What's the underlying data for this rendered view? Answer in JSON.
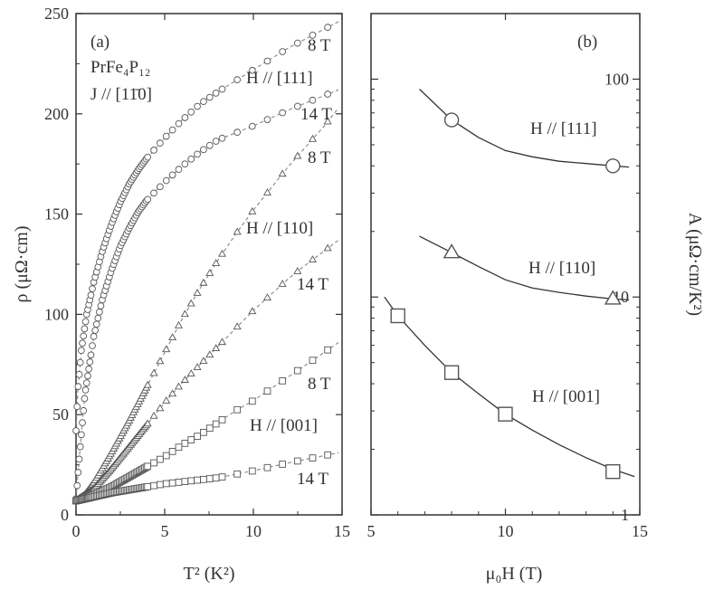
{
  "chart_data": [
    {
      "panel_label": "(a)",
      "type": "scatter",
      "xlabel": "T² (K²)",
      "ylabel": "ρ (μΩ·cm)",
      "xlim": [
        0,
        15
      ],
      "ylim": [
        0,
        250
      ],
      "x_ticks": [
        "0",
        "5",
        "10",
        "15"
      ],
      "y_ticks": [
        "0",
        "50",
        "100",
        "150",
        "200",
        "250"
      ],
      "annotations": [
        "PrFe₄P₁₂",
        "J // [11̄0]",
        "8 T",
        "H // [111]",
        "14 T",
        "8 T",
        "H // [110]",
        "14 T",
        "8 T",
        "H // [001]",
        "14 T"
      ],
      "series": [
        {
          "name": "H // [111] 8 T",
          "marker": "circle",
          "x": [
            0,
            0.1,
            0.3,
            0.6,
            1,
            1.5,
            2,
            2.5,
            3,
            3.5,
            4,
            5,
            6,
            7,
            8,
            10,
            12,
            14.8
          ],
          "y": [
            42,
            62,
            82,
            100,
            116,
            132,
            145,
            156,
            165,
            172,
            178,
            188,
            197,
            205,
            211,
            222,
            233,
            246
          ]
        },
        {
          "name": "H // [111] 14 T",
          "marker": "circle",
          "x": [
            0,
            0.2,
            0.5,
            1,
            1.5,
            2,
            2.5,
            3,
            3.5,
            4,
            5,
            6,
            7,
            8,
            10,
            12,
            14.8
          ],
          "y": [
            8,
            30,
            60,
            89,
            108,
            122,
            134,
            143,
            151,
            157,
            166,
            174,
            181,
            187,
            194,
            202,
            212
          ]
        },
        {
          "name": "H // [110] 8 T",
          "marker": "triangle",
          "x": [
            0,
            0.5,
            1,
            2,
            3,
            4,
            5,
            6,
            7,
            8,
            9,
            10,
            11,
            12,
            13,
            14,
            14.8
          ],
          "y": [
            7,
            10,
            16,
            31,
            47,
            64,
            81,
            98,
            113,
            127,
            140,
            152,
            163,
            174,
            184,
            194,
            203
          ]
        },
        {
          "name": "H // [110] 14 T",
          "marker": "triangle",
          "x": [
            0,
            1,
            2,
            3,
            4,
            5,
            6,
            7,
            8,
            9,
            10,
            11,
            12,
            13,
            14.8
          ],
          "y": [
            7,
            13,
            23,
            34,
            45,
            56,
            66,
            75,
            84,
            93,
            102,
            110,
            118,
            125,
            137
          ]
        },
        {
          "name": "H // [001] 8 T",
          "marker": "square",
          "x": [
            0,
            1,
            2,
            3,
            4,
            5,
            6,
            7,
            8,
            9,
            10,
            11,
            12,
            13,
            14.8
          ],
          "y": [
            7,
            10,
            14,
            19,
            24,
            29,
            35,
            40,
            46,
            52,
            57,
            63,
            69,
            75,
            86
          ]
        },
        {
          "name": "H // [001] 14 T",
          "marker": "square",
          "x": [
            0,
            1,
            2,
            3,
            4,
            5,
            6,
            7,
            8,
            10,
            12,
            14.8
          ],
          "y": [
            7,
            9,
            11,
            12.5,
            14,
            15.5,
            16.5,
            17.5,
            18.5,
            22,
            26,
            31
          ]
        }
      ]
    },
    {
      "panel_label": "(b)",
      "type": "line",
      "xlabel": "μ₀H (T)",
      "ylabel": "A (μΩ·cm/K²)",
      "xlim": [
        5,
        15
      ],
      "ylim": [
        1,
        200
      ],
      "y_scale": "log",
      "x_ticks": [
        "5",
        "10",
        "15"
      ],
      "y_ticks": [
        "1",
        "10",
        "100"
      ],
      "series": [
        {
          "name": "H // [111]",
          "marker": "circle",
          "markers": {
            "x": [
              8,
              14
            ],
            "y": [
              65,
              40
            ]
          },
          "curve": {
            "x": [
              6.8,
              8,
              9,
              10,
              11,
              12,
              13,
              14,
              14.6
            ],
            "y": [
              90,
              65,
              54,
              47,
              44,
              42,
              41,
              40,
              39.5
            ]
          }
        },
        {
          "name": "H // [110]",
          "marker": "triangle",
          "markers": {
            "x": [
              8,
              14
            ],
            "y": [
              16,
              9.8
            ]
          },
          "curve": {
            "x": [
              6.8,
              8,
              9,
              10,
              11,
              12,
              13,
              14,
              14.6
            ],
            "y": [
              19,
              16,
              13.8,
              12,
              11,
              10.5,
              10.1,
              9.8,
              9.7
            ]
          }
        },
        {
          "name": "H // [001]",
          "marker": "square",
          "markers": {
            "x": [
              6,
              8,
              10,
              14
            ],
            "y": [
              8.2,
              4.5,
              2.9,
              1.58
            ]
          },
          "curve": {
            "x": [
              5.5,
              6,
              7,
              8,
              9,
              10,
              11,
              12,
              13,
              14,
              14.8
            ],
            "y": [
              10,
              8.2,
              6.0,
              4.5,
              3.6,
              2.9,
              2.45,
              2.1,
              1.83,
              1.62,
              1.5
            ]
          }
        }
      ]
    }
  ]
}
